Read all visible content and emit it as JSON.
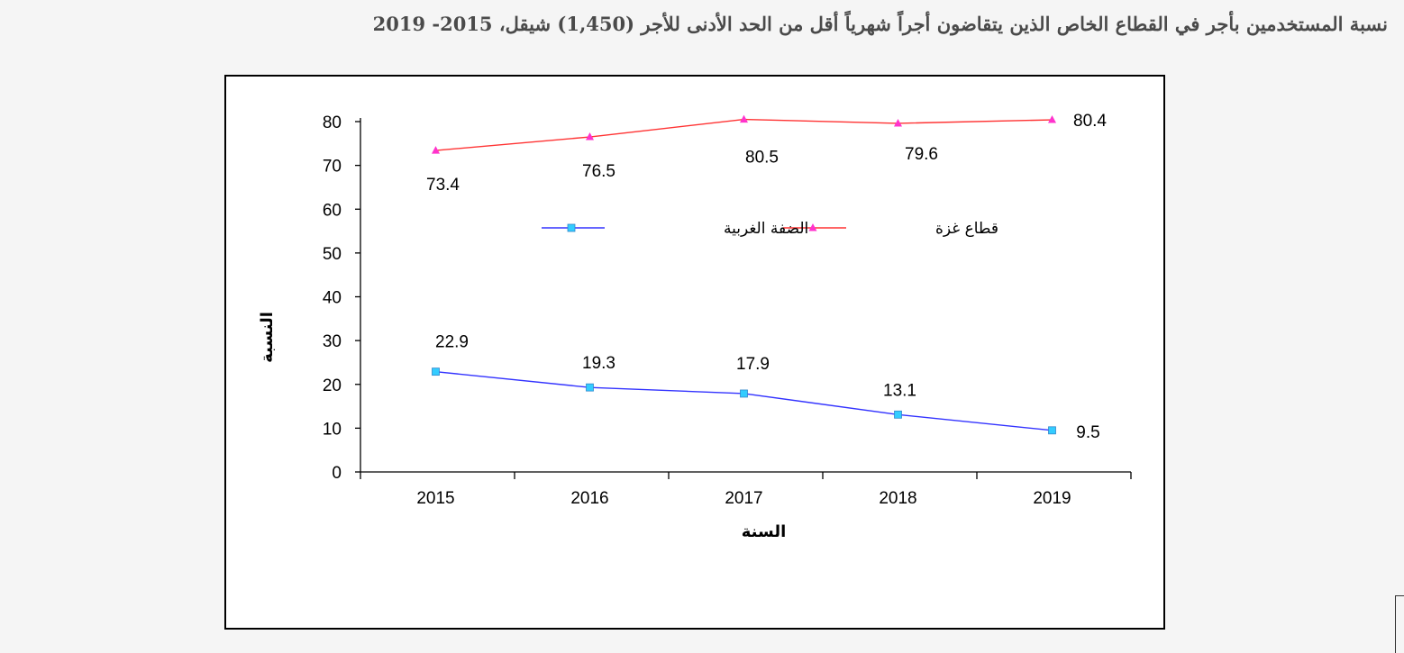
{
  "page": {
    "title": "نسبة المستخدمين بأجر في القطاع الخاص الذين يتقاضون أجراً شهرياً أقل من الحد الأدنى للأجر (1,450) شيقل، 2015- 2019"
  },
  "chart_data": {
    "type": "line",
    "title": "",
    "xlabel": "السنة",
    "ylabel": "النسبة",
    "categories": [
      "2015",
      "2016",
      "2017",
      "2018",
      "2019"
    ],
    "ylim": [
      0,
      80
    ],
    "yticks": [
      0,
      10,
      20,
      30,
      40,
      50,
      60,
      70,
      80
    ],
    "grid": false,
    "legend_position": "center",
    "series": [
      {
        "name": "الضفة الغربية",
        "values": [
          22.9,
          19.3,
          17.9,
          13.1,
          9.5
        ],
        "labels": [
          "22.9",
          "19.3",
          "17.9",
          "13.1",
          "9.5"
        ],
        "color": "#3333ff",
        "marker": "square",
        "marker_color": "#33ccff"
      },
      {
        "name": "قطاع غزة",
        "values": [
          73.4,
          76.5,
          80.5,
          79.6,
          80.4
        ],
        "labels": [
          "73.4",
          "76.5",
          "80.5",
          "79.6",
          "80.4"
        ],
        "color": "#ff3333",
        "marker": "triangle",
        "marker_color": "#ff33cc"
      }
    ]
  }
}
